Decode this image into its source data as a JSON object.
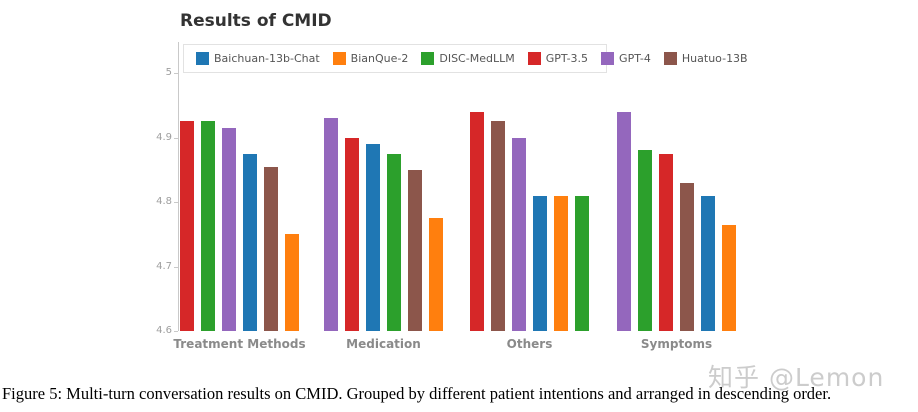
{
  "page": {
    "caption": "Figure 5: Multi-turn conversation results on CMID. Grouped by different patient intentions and arranged in descending order.",
    "watermark": "知乎 @Lemon"
  },
  "chart_data": {
    "type": "bar",
    "title": "Results of CMID",
    "xlabel": "",
    "ylabel": "",
    "ylim": [
      4.6,
      5.0
    ],
    "yticks": [
      5,
      4.9,
      4.8,
      4.7,
      4.6
    ],
    "ytick_labels": [
      "5",
      "4.9",
      "4.8",
      "4.7",
      "4.6"
    ],
    "grid": false,
    "legend_position": "top-inside",
    "legend": [
      {
        "name": "Baichuan-13b-Chat",
        "color": "#1f77b4"
      },
      {
        "name": "BianQue-2",
        "color": "#ff7f0e"
      },
      {
        "name": "DISC-MedLLM",
        "color": "#2ca02c"
      },
      {
        "name": "GPT-3.5",
        "color": "#d62728"
      },
      {
        "name": "GPT-4",
        "color": "#9467bd"
      },
      {
        "name": "Huatuo-13B",
        "color": "#8c564b"
      }
    ],
    "categories": [
      "Treatment Methods",
      "Medication",
      "Others",
      "Symptoms"
    ],
    "sort_order": "descending within each group",
    "groups": [
      {
        "category": "Treatment Methods",
        "bars": [
          {
            "model": "GPT-3.5",
            "value": 4.925
          },
          {
            "model": "DISC-MedLLM",
            "value": 4.925
          },
          {
            "model": "GPT-4",
            "value": 4.915
          },
          {
            "model": "Baichuan-13b-Chat",
            "value": 4.875
          },
          {
            "model": "Huatuo-13B",
            "value": 4.855
          },
          {
            "model": "BianQue-2",
            "value": 4.75
          }
        ]
      },
      {
        "category": "Medication",
        "bars": [
          {
            "model": "GPT-4",
            "value": 4.93
          },
          {
            "model": "GPT-3.5",
            "value": 4.9
          },
          {
            "model": "Baichuan-13b-Chat",
            "value": 4.89
          },
          {
            "model": "DISC-MedLLM",
            "value": 4.875
          },
          {
            "model": "Huatuo-13B",
            "value": 4.85
          },
          {
            "model": "BianQue-2",
            "value": 4.775
          }
        ]
      },
      {
        "category": "Others",
        "bars": [
          {
            "model": "GPT-3.5",
            "value": 4.94
          },
          {
            "model": "Huatuo-13B",
            "value": 4.925
          },
          {
            "model": "GPT-4",
            "value": 4.9
          },
          {
            "model": "Baichuan-13b-Chat",
            "value": 4.81
          },
          {
            "model": "BianQue-2",
            "value": 4.81
          },
          {
            "model": "DISC-MedLLM",
            "value": 4.81
          }
        ]
      },
      {
        "category": "Symptoms",
        "bars": [
          {
            "model": "GPT-4",
            "value": 4.94
          },
          {
            "model": "DISC-MedLLM",
            "value": 4.88
          },
          {
            "model": "GPT-3.5",
            "value": 4.875
          },
          {
            "model": "Huatuo-13B",
            "value": 4.83
          },
          {
            "model": "Baichuan-13b-Chat",
            "value": 4.81
          },
          {
            "model": "BianQue-2",
            "value": 4.765
          }
        ]
      }
    ]
  }
}
